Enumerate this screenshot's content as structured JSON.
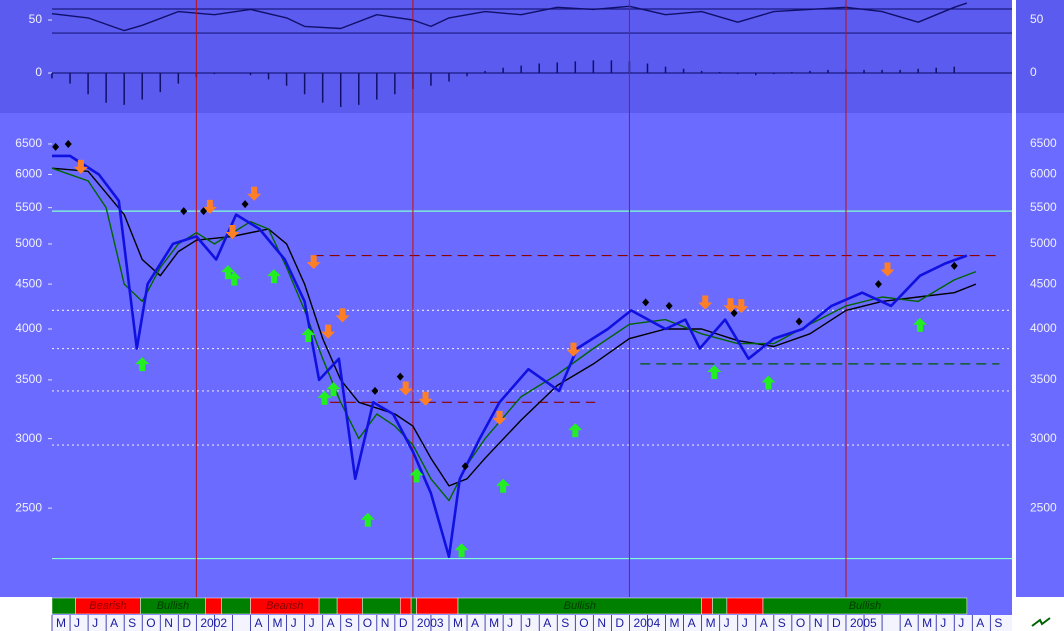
{
  "chart_data": [
    {
      "type": "line",
      "xlim": [
        0,
        53.2
      ],
      "ylim": [
        -37.7,
        68.9
      ],
      "yticks": [
        0,
        50
      ],
      "background": "#5b5bef",
      "levels": [
        {
          "value": 60.4,
          "color": "#1a1a80"
        },
        {
          "value": 37.7,
          "color": "#1a1a80"
        },
        {
          "value": 0,
          "color": "#1a1a80"
        }
      ],
      "series": [
        {
          "kind": "line",
          "color": "#10106a",
          "x": [
            0,
            2,
            4,
            5,
            7,
            9,
            11,
            13,
            14,
            16,
            18,
            20,
            21,
            22,
            24,
            26,
            28,
            30,
            32,
            34,
            36,
            38,
            40,
            42,
            44,
            46,
            48,
            50,
            50.7
          ],
          "values": [
            56,
            52,
            40,
            45,
            58,
            55,
            60,
            52,
            44,
            42,
            55,
            50,
            44,
            52,
            58,
            55,
            62,
            60,
            63,
            55,
            58,
            48,
            58,
            60,
            62,
            58,
            48,
            62,
            66
          ]
        },
        {
          "kind": "bars",
          "color": "#10106a",
          "x": [
            0,
            1,
            2,
            3,
            4,
            5,
            6,
            7,
            8,
            9,
            10,
            11,
            12,
            13,
            14,
            15,
            16,
            17,
            18,
            19,
            20,
            21,
            22,
            23,
            24,
            25,
            26,
            27,
            28,
            29,
            30,
            31,
            32,
            33,
            34,
            35,
            36,
            37,
            38,
            39,
            40,
            41,
            42,
            43,
            44,
            45,
            46,
            47,
            48,
            49,
            50
          ],
          "values": [
            -5,
            -10,
            -20,
            -28,
            -30,
            -25,
            -18,
            -10,
            -4,
            -1,
            0,
            -2,
            -6,
            -12,
            -20,
            -28,
            -32,
            -30,
            -25,
            -20,
            -15,
            -12,
            -8,
            -3,
            2,
            5,
            7,
            9,
            10,
            11,
            12,
            12,
            11,
            9,
            6,
            4,
            2,
            1,
            -1,
            -2,
            -1,
            1,
            2,
            3,
            3,
            3,
            3,
            3,
            4,
            5,
            6
          ]
        }
      ]
    },
    {
      "type": "line",
      "log_scale": true,
      "xlim": [
        0,
        53.2
      ],
      "ylim": [
        1980,
        7050
      ],
      "yticks": [
        2500,
        3000,
        3500,
        4000,
        4500,
        5000,
        5500,
        6000,
        6500
      ],
      "background": "#6b6bff",
      "levels": [
        {
          "value": 5450,
          "color": "#7fffd4",
          "dash": "",
          "from": 0,
          "to": 53.2
        },
        {
          "value": 2190,
          "color": "#7fffd4",
          "dash": "",
          "from": 0,
          "to": 53.2
        },
        {
          "value": 4200,
          "color": "#e0e0ff",
          "dash": "2 3",
          "from": 0,
          "to": 53.2
        },
        {
          "value": 3800,
          "color": "#e0e0ff",
          "dash": "2 3",
          "from": 0,
          "to": 53.2
        },
        {
          "value": 3400,
          "color": "#e0e0ff",
          "dash": "2 3",
          "from": 0,
          "to": 53.2
        },
        {
          "value": 2950,
          "color": "#e0e0ff",
          "dash": "2 3",
          "from": 0,
          "to": 53.2
        },
        {
          "value": 4850,
          "color": "#8b0000",
          "dash": "10 6",
          "from": 14.5,
          "to": 52.5
        },
        {
          "value": 3300,
          "color": "#8b0000",
          "dash": "10 6",
          "from": 15.4,
          "to": 30.1
        },
        {
          "value": 3650,
          "color": "#005a00",
          "dash": "10 6",
          "from": 32.6,
          "to": 52.5
        }
      ],
      "series": [
        {
          "kind": "line",
          "color": "#000000",
          "x": [
            0,
            2,
            4,
            5,
            6,
            7,
            8,
            10,
            12,
            13,
            14,
            15,
            16,
            17,
            18,
            19,
            20,
            21,
            22,
            23,
            24,
            26,
            28,
            30,
            32,
            34,
            36,
            38,
            40,
            42,
            44,
            46,
            48,
            50,
            51.2
          ],
          "values": [
            6100,
            6050,
            5400,
            4800,
            4600,
            4900,
            5050,
            5100,
            5200,
            5000,
            4500,
            3900,
            3500,
            3300,
            3250,
            3200,
            3100,
            2850,
            2650,
            2700,
            2850,
            3150,
            3450,
            3650,
            3900,
            4000,
            4000,
            3880,
            3820,
            3950,
            4200,
            4300,
            4350,
            4400,
            4500
          ]
        },
        {
          "kind": "line",
          "color": "#006400",
          "x": [
            0,
            2,
            3,
            4,
            5,
            6,
            7,
            8,
            9,
            11,
            12,
            13,
            14,
            15,
            16,
            17,
            18,
            19,
            20,
            21,
            22,
            23,
            24,
            26,
            28,
            30,
            32,
            34,
            36,
            38,
            40,
            42,
            44,
            46,
            48,
            50,
            51.2
          ],
          "values": [
            6100,
            5900,
            5500,
            4500,
            4300,
            4700,
            5000,
            5150,
            5000,
            5300,
            5200,
            4700,
            4200,
            3700,
            3300,
            3000,
            3200,
            3100,
            2950,
            2700,
            2550,
            2800,
            3000,
            3350,
            3550,
            3800,
            4050,
            4100,
            3950,
            3850,
            3850,
            4050,
            4250,
            4350,
            4300,
            4550,
            4650
          ]
        },
        {
          "kind": "line",
          "color": "#1010e0",
          "x": [
            0,
            1.0,
            2.6,
            3.7,
            4.7,
            5.3,
            6.7,
            8.0,
            9.1,
            10.2,
            11.5,
            12.9,
            14.0,
            14.8,
            15.9,
            16.8,
            17.8,
            18.9,
            20.0,
            21.0,
            22.0,
            22.6,
            23.7,
            24.8,
            26.4,
            28.1,
            29.1,
            30.8,
            32.1,
            34.0,
            35.1,
            35.9,
            37.3,
            38.6,
            40.0,
            41.6,
            43.2,
            44.9,
            46.5,
            48.1,
            49.5,
            50.7
          ],
          "values": [
            6300,
            6300,
            6000,
            5600,
            3800,
            4500,
            5000,
            5100,
            4800,
            5400,
            5200,
            4800,
            4300,
            3500,
            3700,
            2700,
            3300,
            3200,
            2900,
            2600,
            2200,
            2700,
            3000,
            3300,
            3600,
            3400,
            3800,
            4000,
            4200,
            4000,
            4100,
            3800,
            4100,
            3700,
            3900,
            4000,
            4250,
            4400,
            4250,
            4600,
            4750,
            4850
          ]
        }
      ],
      "signals": {
        "up": {
          "color": "#22ee22",
          "x": [
            5.0,
            9.75,
            10.1,
            12.3,
            14.2,
            15.1,
            15.6,
            17.5,
            20.2,
            22.7,
            25.0,
            29.0,
            36.7,
            39.7,
            48.1
          ],
          "y": [
            3716,
            4730,
            4650,
            4680,
            4010,
            3400,
            3480,
            2470,
            2775,
            2280,
            2700,
            3125,
            3640,
            3540,
            4120
          ]
        },
        "down": {
          "color": "#ff7f27",
          "x": [
            1.6,
            8.75,
            10.0,
            11.2,
            14.5,
            16.1,
            15.3,
            19.6,
            20.7,
            24.8,
            28.9,
            36.2,
            37.6,
            38.2,
            46.3
          ],
          "y": [
            6010,
            5410,
            5065,
            5600,
            4680,
            4070,
            3900,
            3360,
            3270,
            3110,
            3720,
            4210,
            4180,
            4170,
            4590
          ]
        },
        "diamond": {
          "color": "#000000",
          "x": [
            0.2,
            0.9,
            7.3,
            8.4,
            10.7,
            17.9,
            19.3,
            22.9,
            32.9,
            34.2,
            37.8,
            41.4,
            45.8,
            50.0
          ],
          "y": [
            6450,
            6500,
            5450,
            5450,
            5550,
            3400,
            3530,
            2790,
            4290,
            4250,
            4170,
            4080,
            4500,
            4720
          ]
        }
      },
      "regimes": [
        {
          "from": 0,
          "to": 1.3,
          "color": "#008000"
        },
        {
          "from": 1.3,
          "to": 4.9,
          "color": "#ff0000",
          "label": "Bearish"
        },
        {
          "from": 4.9,
          "to": 8.5,
          "color": "#008000",
          "label": "Bullish"
        },
        {
          "from": 8.5,
          "to": 9.4,
          "color": "#ff0000"
        },
        {
          "from": 9.4,
          "to": 11.0,
          "color": "#008000"
        },
        {
          "from": 11.0,
          "to": 14.8,
          "color": "#ff0000",
          "label": "Bearish"
        },
        {
          "from": 14.8,
          "to": 15.8,
          "color": "#008000"
        },
        {
          "from": 15.8,
          "to": 17.2,
          "color": "#ff0000"
        },
        {
          "from": 17.2,
          "to": 19.3,
          "color": "#008000"
        },
        {
          "from": 19.3,
          "to": 19.9,
          "color": "#ff0000"
        },
        {
          "from": 19.9,
          "to": 20.2,
          "color": "#008000"
        },
        {
          "from": 20.2,
          "to": 22.5,
          "color": "#ff0000"
        },
        {
          "from": 22.5,
          "to": 36.0,
          "color": "#008000",
          "label": "Bullish"
        },
        {
          "from": 36.0,
          "to": 36.6,
          "color": "#ff0000"
        },
        {
          "from": 36.6,
          "to": 37.4,
          "color": "#008000"
        },
        {
          "from": 37.4,
          "to": 39.4,
          "color": "#ff0000"
        },
        {
          "from": 39.4,
          "to": 50.7,
          "color": "#008000",
          "label": "Bullish"
        }
      ],
      "month_labels": [
        "M",
        "J",
        "J",
        "A",
        "S",
        "O",
        "N",
        "D",
        "2002",
        null,
        null,
        "A",
        "M",
        "J",
        "J",
        "A",
        "S",
        "O",
        "N",
        "D",
        "2003",
        null,
        "M",
        "A",
        "M",
        "J",
        "J",
        "A",
        "S",
        "O",
        "N",
        "D",
        "2004",
        null,
        "M",
        "A",
        "M",
        "J",
        "J",
        "A",
        "S",
        "O",
        "N",
        "D",
        "2005",
        null,
        null,
        "A",
        "M",
        "J",
        "J",
        "A",
        "S"
      ]
    }
  ]
}
